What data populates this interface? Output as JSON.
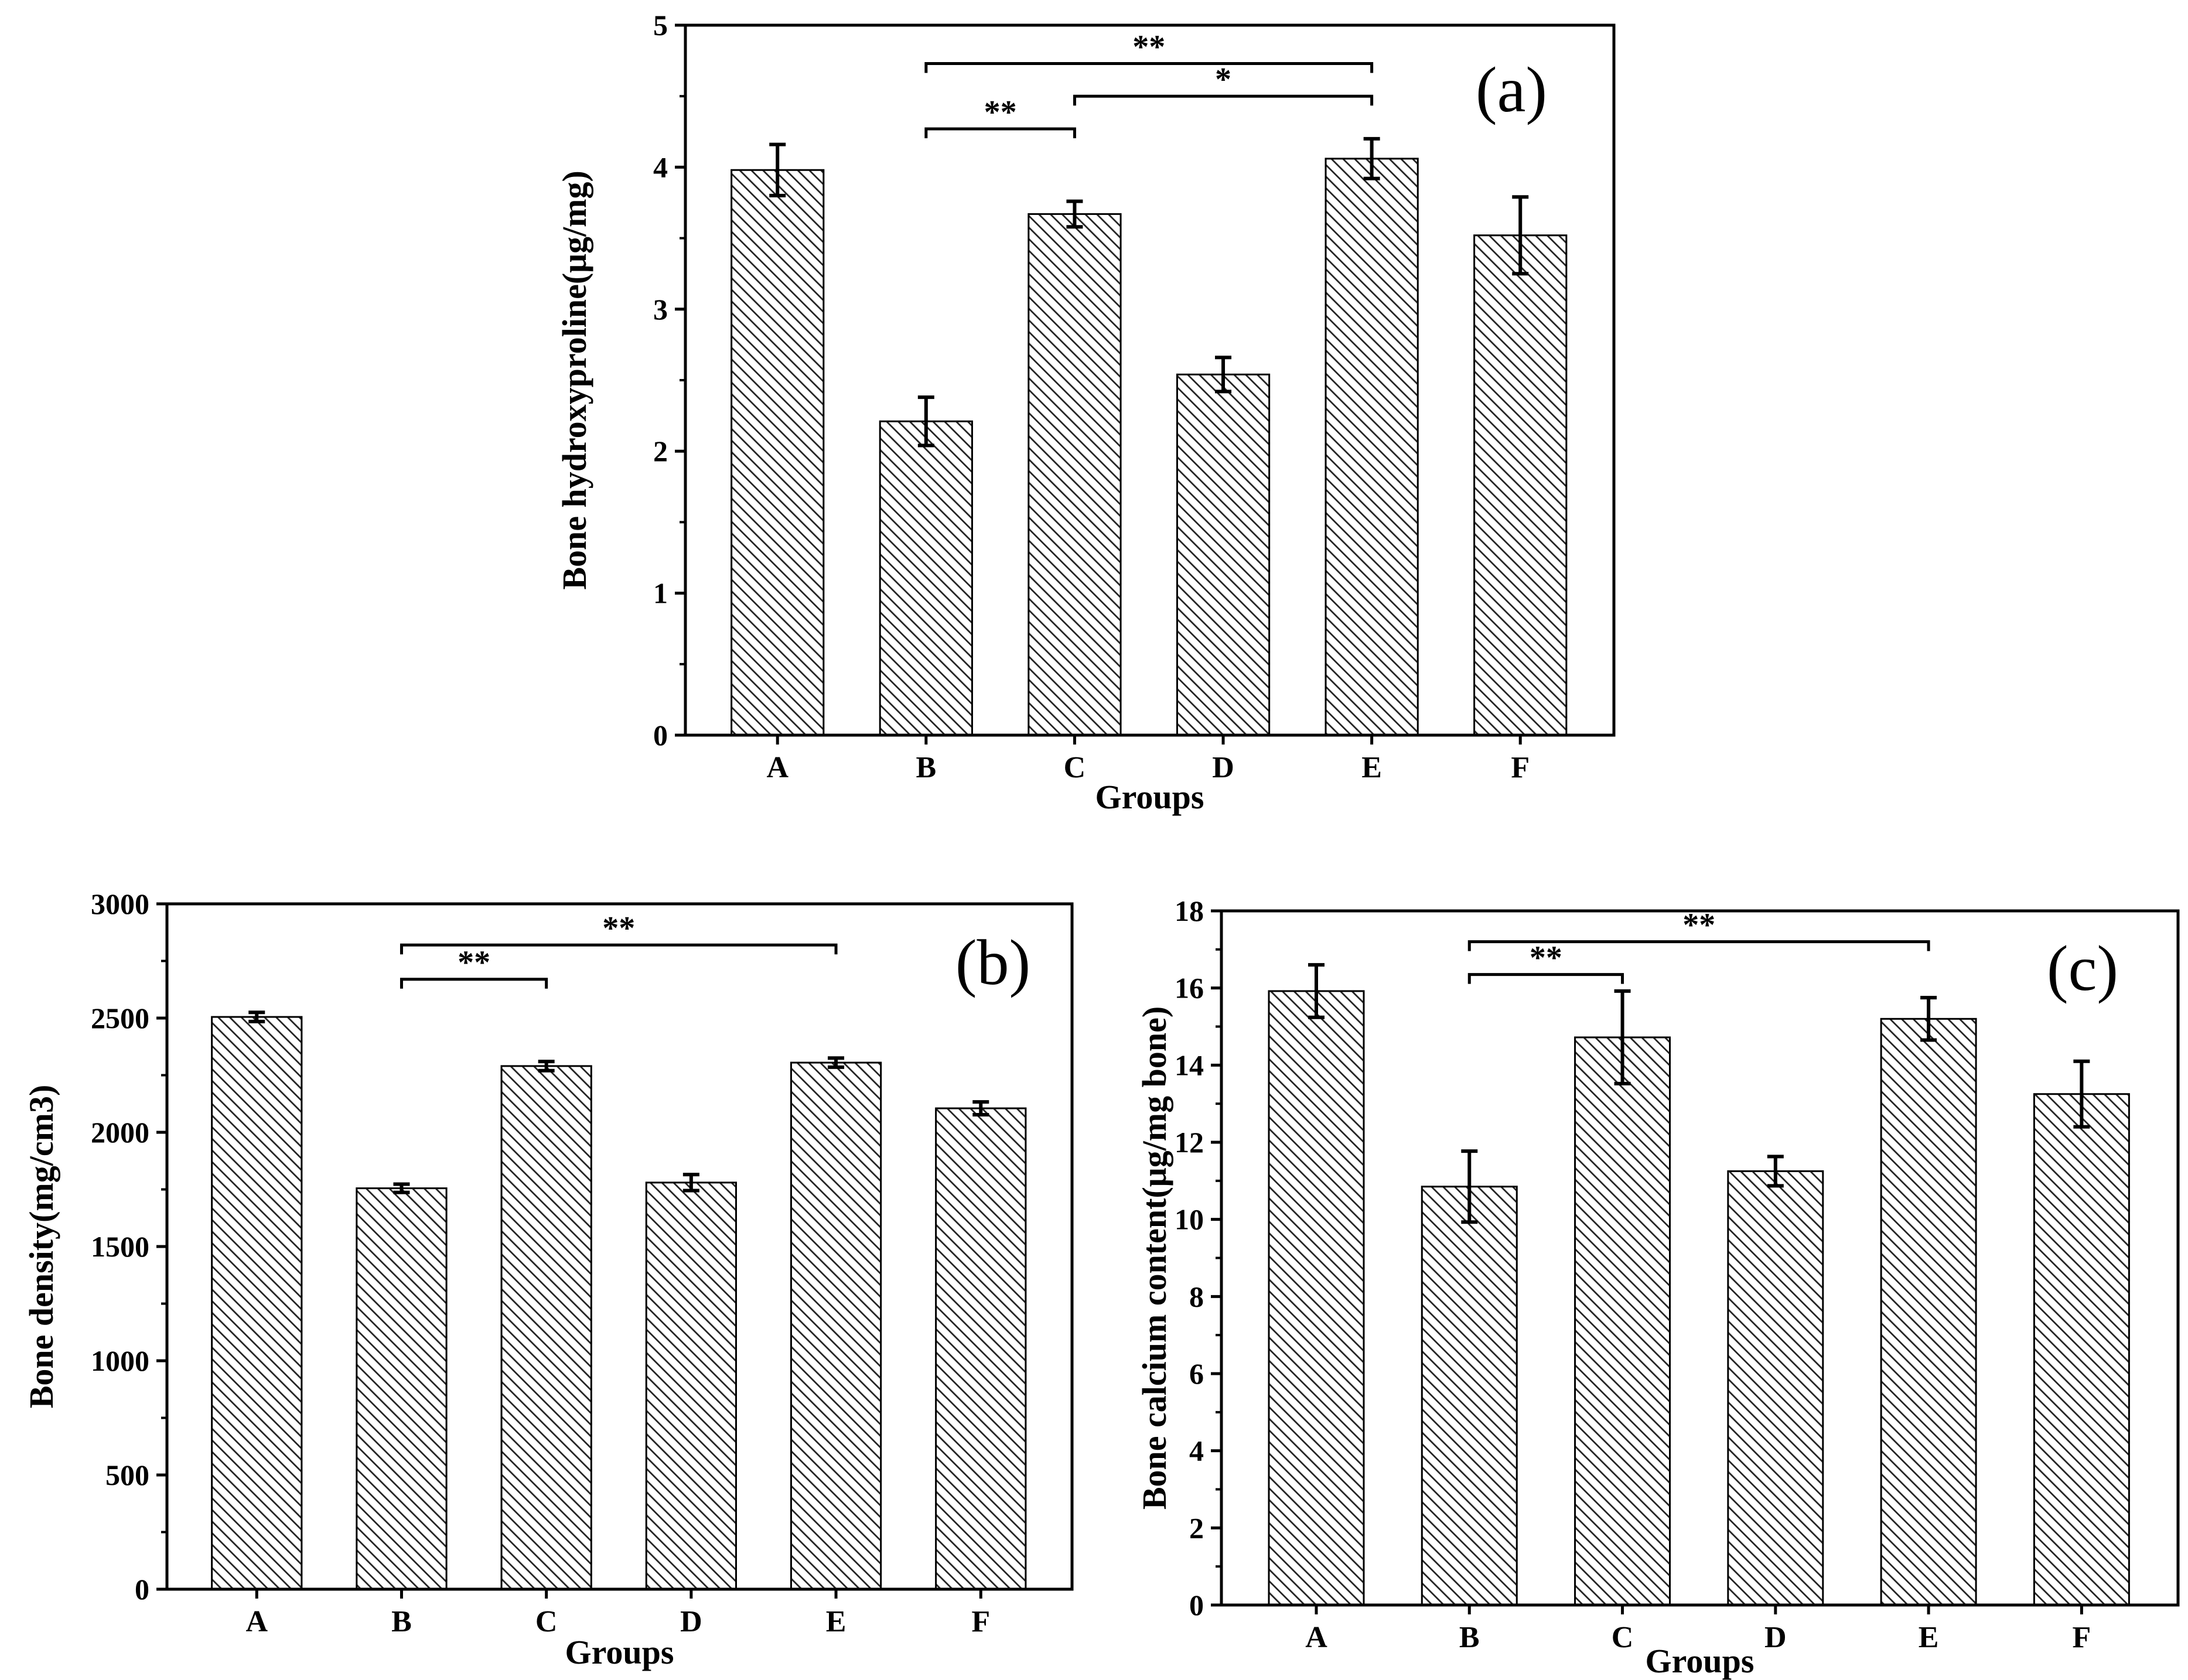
{
  "chart_data": [
    {
      "type": "bar",
      "panel_label": "(a)",
      "categories": [
        "A",
        "B",
        "C",
        "D",
        "E",
        "F"
      ],
      "values": [
        3.98,
        2.21,
        3.67,
        2.54,
        4.06,
        3.52
      ],
      "errors": [
        0.18,
        0.17,
        0.09,
        0.12,
        0.14,
        0.27
      ],
      "xlabel": "Groups",
      "ylabel": "Bone hydroxyproline(μg/mg)",
      "ylim": [
        0,
        5
      ],
      "yticks": [
        0,
        1,
        2,
        3,
        4,
        5
      ],
      "ytick_labels": [
        "0",
        "1",
        "2",
        "3",
        "4",
        "5"
      ],
      "minor_ticks": 1,
      "significance": [
        {
          "from": "B",
          "to": "C",
          "y": 4.27,
          "label": "**"
        },
        {
          "from": "C",
          "to": "E",
          "y": 4.5,
          "label": "*"
        },
        {
          "from": "B",
          "to": "E",
          "y": 4.73,
          "label": "**"
        }
      ]
    },
    {
      "type": "bar",
      "panel_label": "(b)",
      "categories": [
        "A",
        "B",
        "C",
        "D",
        "E",
        "F"
      ],
      "values": [
        2505,
        1755,
        2290,
        1780,
        2305,
        2105
      ],
      "errors": [
        20,
        18,
        20,
        35,
        20,
        28
      ],
      "xlabel": "Groups",
      "ylabel": "Bone density(mg/cm3)",
      "ylim": [
        0,
        3000
      ],
      "yticks": [
        0,
        500,
        1000,
        1500,
        2000,
        2500,
        3000
      ],
      "ytick_labels": [
        "0",
        "500",
        "1000",
        "1500",
        "2000",
        "2500",
        "3000"
      ],
      "minor_ticks": 1,
      "significance": [
        {
          "from": "B",
          "to": "C",
          "y": 2670,
          "label": "**"
        },
        {
          "from": "B",
          "to": "E",
          "y": 2820,
          "label": "**"
        }
      ]
    },
    {
      "type": "bar",
      "panel_label": "(c)",
      "categories": [
        "A",
        "B",
        "C",
        "D",
        "E",
        "F"
      ],
      "values": [
        15.92,
        10.85,
        14.72,
        11.25,
        15.2,
        13.25
      ],
      "errors": [
        0.68,
        0.92,
        1.2,
        0.38,
        0.55,
        0.85
      ],
      "xlabel": "Groups",
      "ylabel": "Bone calcium content(μg/mg bone)",
      "ylim": [
        0,
        18
      ],
      "yticks": [
        0,
        2,
        4,
        6,
        8,
        10,
        12,
        14,
        16,
        18
      ],
      "ytick_labels": [
        "0",
        "2",
        "4",
        "6",
        "8",
        "10",
        "12",
        "14",
        "16",
        "18"
      ],
      "minor_ticks": 1,
      "significance": [
        {
          "from": "B",
          "to": "C",
          "y": 16.35,
          "label": "**"
        },
        {
          "from": "B",
          "to": "E",
          "y": 17.2,
          "label": "**"
        }
      ]
    }
  ]
}
